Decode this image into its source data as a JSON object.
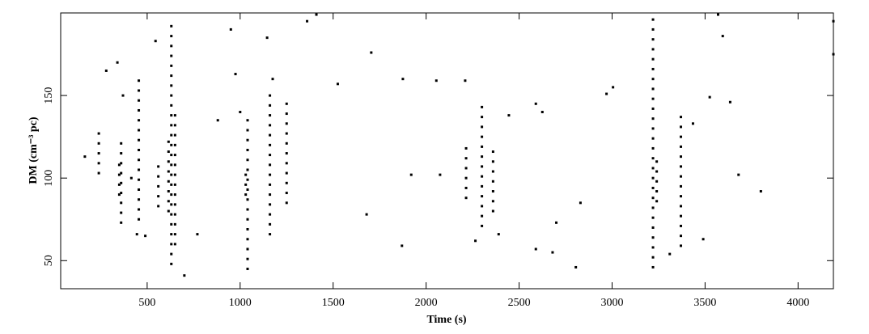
{
  "chart_data": {
    "type": "scatter",
    "x_label": "Time (s)",
    "y_label": "DM (cm⁻³ pc)",
    "xlim": [
      35,
      4190
    ],
    "ylim": [
      33,
      200
    ],
    "xticks": [
      500,
      1000,
      1500,
      2000,
      2500,
      3000,
      3500,
      4000
    ],
    "yticks": [
      50,
      100,
      150
    ],
    "series": [
      {
        "color": "#000000",
        "x": [
          240,
          240,
          240,
          240,
          240,
          350,
          350,
          350,
          350,
          360,
          360,
          360,
          360,
          360,
          360,
          360,
          360,
          360,
          455,
          455,
          455,
          455,
          455,
          455,
          455,
          455,
          455,
          455,
          455,
          455,
          455,
          455,
          455,
          560,
          560,
          560,
          560,
          560,
          615,
          615,
          615,
          615,
          615,
          615,
          615,
          615,
          630,
          630,
          630,
          630,
          630,
          630,
          630,
          630,
          630,
          630,
          630,
          630,
          630,
          630,
          630,
          630,
          630,
          630,
          630,
          630,
          630,
          630,
          630,
          630,
          630,
          650,
          650,
          650,
          650,
          650,
          650,
          650,
          650,
          650,
          650,
          650,
          650,
          650,
          650,
          1030,
          1030,
          1030,
          1040,
          1040,
          1040,
          1040,
          1040,
          1040,
          1040,
          1040,
          1040,
          1040,
          1040,
          1040,
          1040,
          1040,
          1040,
          1040,
          1160,
          1160,
          1160,
          1160,
          1160,
          1160,
          1160,
          1160,
          1160,
          1160,
          1160,
          1160,
          1160,
          1160,
          1160,
          1250,
          1250,
          1250,
          1250,
          1250,
          1250,
          1250,
          1250,
          1250,
          1250,
          1250,
          2215,
          2215,
          2215,
          2215,
          2215,
          2215,
          2300,
          2300,
          2300,
          2300,
          2300,
          2300,
          2300,
          2300,
          2300,
          2300,
          2300,
          2300,
          2300,
          2360,
          2360,
          2360,
          2360,
          2360,
          2360,
          2360,
          3220,
          3220,
          3220,
          3220,
          3220,
          3220,
          3220,
          3220,
          3220,
          3220,
          3220,
          3220,
          3220,
          3220,
          3220,
          3220,
          3220,
          3220,
          3220,
          3220,
          3220,
          3220,
          3220,
          3220,
          3220,
          3220,
          3240,
          3240,
          3240,
          3240,
          3240,
          3370,
          3370,
          3370,
          3370,
          3370,
          3370,
          3370,
          3370,
          3370,
          3370,
          3370,
          3370,
          3370,
          3370,
          165,
          280,
          340,
          370,
          415,
          445,
          490,
          545,
          700,
          770,
          880,
          950,
          975,
          1000,
          1145,
          1175,
          1360,
          1410,
          1525,
          1680,
          1705,
          1870,
          1875,
          1920,
          2055,
          2075,
          2210,
          2265,
          2390,
          2445,
          2590,
          2590,
          2625,
          2680,
          2700,
          2830,
          2805,
          2970,
          3005,
          3310,
          3435,
          3490,
          3525,
          3570,
          3595,
          3635,
          3680,
          3800,
          4190,
          4190
        ],
        "y": [
          103,
          109,
          115,
          121,
          127,
          90,
          96,
          102,
          108,
          73,
          79,
          85,
          91,
          97,
          103,
          109,
          115,
          121,
          75,
          81,
          87,
          93,
          99,
          105,
          111,
          117,
          123,
          129,
          135,
          141,
          147,
          153,
          159,
          83,
          89,
          95,
          101,
          107,
          80,
          86,
          92,
          98,
          104,
          110,
          116,
          122,
          48,
          54,
          60,
          66,
          72,
          78,
          84,
          90,
          96,
          102,
          108,
          114,
          120,
          126,
          132,
          138,
          144,
          150,
          156,
          162,
          168,
          174,
          180,
          186,
          192,
          60,
          66,
          72,
          78,
          84,
          90,
          96,
          102,
          108,
          114,
          120,
          126,
          132,
          138,
          90,
          96,
          102,
          45,
          51,
          57,
          63,
          69,
          75,
          81,
          87,
          93,
          99,
          105,
          111,
          117,
          123,
          129,
          135,
          66,
          72,
          78,
          84,
          90,
          96,
          102,
          108,
          114,
          120,
          126,
          132,
          138,
          144,
          150,
          85,
          91,
          97,
          103,
          109,
          115,
          121,
          127,
          133,
          139,
          145,
          88,
          94,
          100,
          106,
          112,
          118,
          71,
          77,
          83,
          89,
          95,
          101,
          107,
          113,
          119,
          125,
          131,
          137,
          143,
          80,
          86,
          92,
          98,
          104,
          110,
          116,
          46,
          52,
          58,
          64,
          70,
          76,
          82,
          88,
          94,
          100,
          106,
          112,
          118,
          124,
          130,
          136,
          142,
          148,
          154,
          160,
          166,
          172,
          178,
          184,
          190,
          196,
          86,
          92,
          98,
          104,
          110,
          59,
          65,
          71,
          77,
          83,
          89,
          95,
          101,
          107,
          113,
          119,
          125,
          131,
          137,
          113,
          165,
          170,
          150,
          100,
          66,
          65,
          183,
          41,
          66,
          135,
          190,
          163,
          140,
          185,
          160,
          195,
          199,
          157,
          78,
          176,
          59,
          160,
          102,
          159,
          102,
          159,
          62,
          66,
          138,
          145,
          57,
          140,
          55,
          73,
          85,
          46,
          151,
          155,
          54,
          133,
          63,
          149,
          199,
          186,
          146,
          102,
          92,
          175,
          195
        ]
      }
    ]
  }
}
